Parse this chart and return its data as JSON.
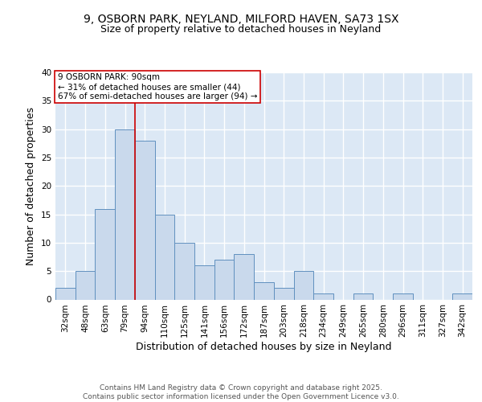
{
  "title1": "9, OSBORN PARK, NEYLAND, MILFORD HAVEN, SA73 1SX",
  "title2": "Size of property relative to detached houses in Neyland",
  "xlabel": "Distribution of detached houses by size in Neyland",
  "ylabel": "Number of detached properties",
  "categories": [
    "32sqm",
    "48sqm",
    "63sqm",
    "79sqm",
    "94sqm",
    "110sqm",
    "125sqm",
    "141sqm",
    "156sqm",
    "172sqm",
    "187sqm",
    "203sqm",
    "218sqm",
    "234sqm",
    "249sqm",
    "265sqm",
    "280sqm",
    "296sqm",
    "311sqm",
    "327sqm",
    "342sqm"
  ],
  "values": [
    2,
    5,
    16,
    30,
    28,
    15,
    10,
    6,
    7,
    8,
    3,
    2,
    5,
    1,
    0,
    1,
    0,
    1,
    0,
    0,
    1
  ],
  "bar_color": "#c9d9ec",
  "bar_edge_color": "#6090bf",
  "vline_index": 4,
  "vline_color": "#cc0000",
  "annotation_text": "9 OSBORN PARK: 90sqm\n← 31% of detached houses are smaller (44)\n67% of semi-detached houses are larger (94) →",
  "annotation_box_color": "white",
  "annotation_box_edge_color": "#cc0000",
  "ylim": [
    0,
    40
  ],
  "yticks": [
    0,
    5,
    10,
    15,
    20,
    25,
    30,
    35,
    40
  ],
  "footer": "Contains HM Land Registry data © Crown copyright and database right 2025.\nContains public sector information licensed under the Open Government Licence v3.0.",
  "background_color": "#dce8f5",
  "grid_color": "white",
  "title_fontsize": 10,
  "subtitle_fontsize": 9,
  "axis_label_fontsize": 9,
  "tick_fontsize": 7.5,
  "annotation_fontsize": 7.5,
  "footer_fontsize": 6.5
}
